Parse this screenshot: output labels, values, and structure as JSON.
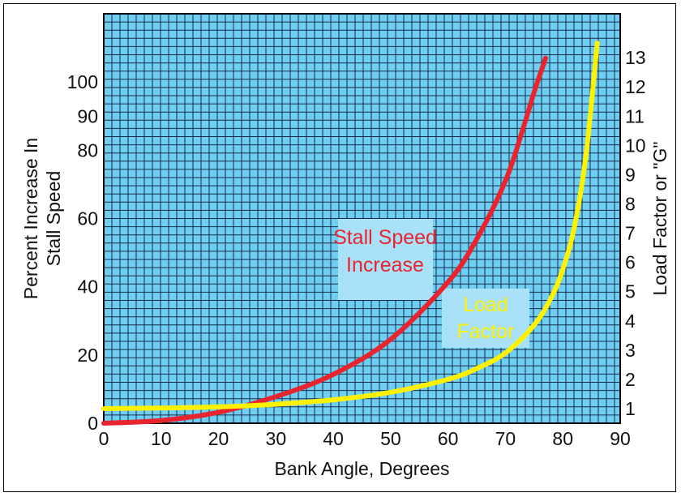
{
  "chart_data": {
    "type": "line",
    "title": "",
    "xlabel": "Bank Angle, Degrees",
    "ylabel_left": [
      "Percent Increase In",
      "Stall Speed"
    ],
    "ylabel_right": "Load Factor or \"G\"",
    "xlim": [
      0,
      90
    ],
    "ylim_left": [
      0,
      120
    ],
    "ylim_right": [
      0.5,
      14.5
    ],
    "x_ticks": [
      "0",
      "10",
      "20",
      "30",
      "40",
      "50",
      "60",
      "70",
      "80",
      "90"
    ],
    "y_left_ticks": [
      "0",
      "20",
      "40",
      "60",
      "80",
      "90",
      "100"
    ],
    "y_left_tick_values": [
      0,
      20,
      40,
      60,
      80,
      90,
      100
    ],
    "y_right_ticks": [
      "1",
      "2",
      "3",
      "4",
      "5",
      "6",
      "7",
      "8",
      "9",
      "10",
      "11",
      "12",
      "13"
    ],
    "grid": true,
    "series": [
      {
        "name": "Stall Speed Increase",
        "axis": "left",
        "x": [
          0,
          10,
          20,
          30,
          40,
          50,
          60,
          65,
          70,
          73,
          75,
          77
        ],
        "values": [
          0,
          0.8,
          3.2,
          7.8,
          14.3,
          24.6,
          41.4,
          54,
          71,
          86,
          97,
          107
        ]
      },
      {
        "name": "Load Factor",
        "axis": "right",
        "x": [
          0,
          10,
          20,
          30,
          40,
          50,
          60,
          65,
          70,
          75,
          78,
          80,
          82,
          84,
          86
        ],
        "values": [
          1,
          1.02,
          1.06,
          1.15,
          1.3,
          1.56,
          2,
          2.37,
          2.9,
          3.86,
          4.8,
          5.76,
          7.2,
          9.6,
          13.5
        ]
      }
    ],
    "annotations": [
      {
        "lines": [
          "Stall Speed",
          "Increase"
        ],
        "color": "#e8242e"
      },
      {
        "lines": [
          "Load",
          "Factor"
        ],
        "color": "#fff200"
      }
    ]
  },
  "colors": {
    "plot_background": "#6ecff3",
    "grid": "#1a2a4a",
    "stall_line": "#e8242e",
    "load_line": "#fff200",
    "label_box": "#a8e1f8"
  }
}
